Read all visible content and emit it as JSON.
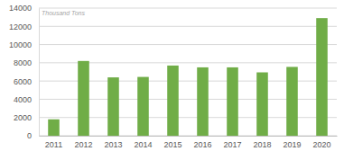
{
  "chart_data": {
    "type": "bar",
    "y_label": "Thousand Tons",
    "categories": [
      "2011",
      "2012",
      "2013",
      "2014",
      "2015",
      "2016",
      "2017",
      "2018",
      "2019",
      "2020"
    ],
    "values": [
      1800,
      8200,
      6400,
      6450,
      7700,
      7500,
      7500,
      6950,
      7550,
      12900
    ],
    "color": "#70ad47",
    "ylim": [
      0,
      14000
    ],
    "yticks": [
      0,
      2000,
      4000,
      6000,
      8000,
      10000,
      12000,
      14000
    ],
    "grid": true
  }
}
